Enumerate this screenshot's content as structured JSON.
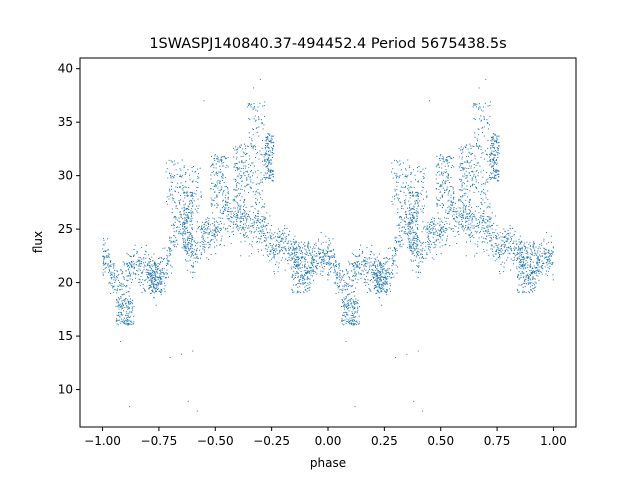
{
  "chart_data": {
    "type": "scatter",
    "title": "1SWASPJ140840.37-494452.4 Period 5675438.5s",
    "xlabel": "phase",
    "ylabel": "flux",
    "xlim": [
      -1.1,
      1.1
    ],
    "ylim": [
      6.5,
      41.0
    ],
    "xticks": [
      -1.0,
      -0.75,
      -0.5,
      -0.25,
      0.0,
      0.25,
      0.5,
      0.75,
      1.0
    ],
    "xtick_labels": [
      "−1.00",
      "−0.75",
      "−0.50",
      "−0.25",
      "0.00",
      "0.25",
      "0.50",
      "0.75",
      "1.00"
    ],
    "yticks": [
      10,
      15,
      20,
      25,
      30,
      35,
      40
    ],
    "ytick_labels": [
      "10",
      "15",
      "20",
      "25",
      "30",
      "35",
      "40"
    ],
    "grid": false,
    "legend": "none",
    "marker_color": "#1f77b4",
    "profile": {
      "phase": [
        0.0,
        0.02,
        0.04,
        0.06,
        0.08,
        0.1,
        0.12,
        0.14,
        0.16,
        0.18,
        0.2,
        0.22,
        0.24,
        0.26,
        0.28,
        0.3,
        0.32,
        0.34,
        0.36,
        0.38,
        0.4,
        0.42,
        0.44,
        0.46,
        0.48,
        0.5,
        0.52,
        0.54,
        0.56,
        0.58,
        0.6,
        0.62,
        0.64,
        0.66,
        0.68,
        0.7,
        0.72,
        0.74,
        0.76,
        0.78,
        0.8,
        0.82,
        0.84,
        0.86,
        0.88,
        0.9,
        0.92,
        0.94,
        0.96,
        0.98,
        1.0
      ],
      "flux": [
        22.5,
        22.0,
        21.0,
        20.0,
        19.5,
        20.5,
        21.5,
        22.0,
        21.5,
        21.0,
        21.0,
        20.5,
        20.5,
        21.0,
        21.5,
        23.0,
        24.5,
        25.5,
        24.5,
        23.5,
        22.5,
        23.5,
        24.0,
        25.0,
        24.0,
        24.5,
        25.5,
        26.5,
        26.0,
        25.5,
        26.0,
        25.5,
        25.0,
        24.5,
        25.5,
        25.0,
        24.5,
        24.0,
        23.0,
        23.5,
        24.0,
        23.5,
        23.0,
        22.0,
        21.5,
        21.0,
        21.5,
        22.0,
        22.5,
        22.5,
        22.5
      ]
    },
    "bands": [
      {
        "x": [
          0.28,
          0.44
        ],
        "y": [
          26.5,
          31.5
        ]
      },
      {
        "x": [
          0.48,
          0.56
        ],
        "y": [
          27.0,
          32.0
        ]
      },
      {
        "x": [
          0.58,
          0.64
        ],
        "y": [
          26.0,
          33.0
        ]
      },
      {
        "x": [
          0.64,
          0.72
        ],
        "y": [
          27.0,
          37.0
        ]
      },
      {
        "x": [
          0.72,
          0.76
        ],
        "y": [
          29.5,
          34.0
        ]
      },
      {
        "x": [
          0.84,
          0.92
        ],
        "y": [
          19.0,
          24.0
        ]
      },
      {
        "x": [
          0.06,
          0.14
        ],
        "y": [
          16.0,
          18.5
        ]
      },
      {
        "x": [
          0.2,
          0.26
        ],
        "y": [
          19.0,
          22.0
        ]
      },
      {
        "x": [
          0.36,
          0.4
        ],
        "y": [
          23.0,
          28.5
        ]
      }
    ],
    "outliers": [
      {
        "x": -0.88,
        "y": 8.4
      },
      {
        "x": 0.12,
        "y": 8.4
      },
      {
        "x": -0.58,
        "y": 8.0
      },
      {
        "x": 0.42,
        "y": 8.0
      },
      {
        "x": -0.62,
        "y": 8.9
      },
      {
        "x": 0.38,
        "y": 8.9
      },
      {
        "x": -0.65,
        "y": 13.3
      },
      {
        "x": 0.35,
        "y": 13.3
      },
      {
        "x": -0.6,
        "y": 13.6
      },
      {
        "x": 0.4,
        "y": 13.6
      },
      {
        "x": -0.7,
        "y": 13.0
      },
      {
        "x": 0.3,
        "y": 13.0
      },
      {
        "x": -0.33,
        "y": 38.2
      },
      {
        "x": 0.67,
        "y": 38.2
      },
      {
        "x": -0.3,
        "y": 39.0
      },
      {
        "x": 0.7,
        "y": 39.0
      },
      {
        "x": -0.55,
        "y": 37.0
      },
      {
        "x": 0.45,
        "y": 37.0
      },
      {
        "x": -0.92,
        "y": 14.5
      },
      {
        "x": 0.08,
        "y": 14.5
      }
    ],
    "symmetry": "points repeated at phase and phase minus 1 (two cycles shown, -1.0 to 1.0)"
  }
}
